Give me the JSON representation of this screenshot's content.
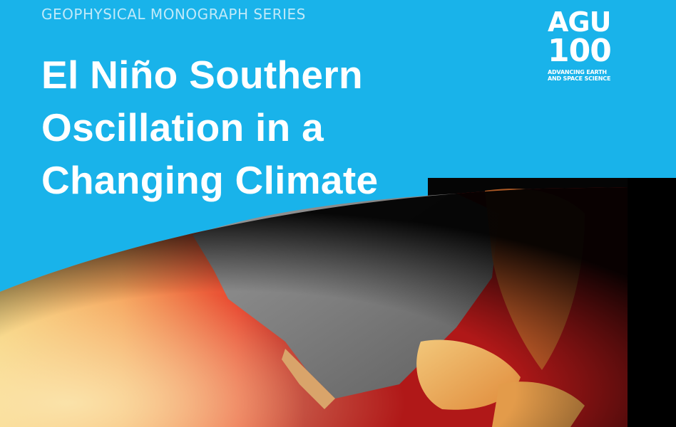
{
  "series_label": "GEOPHYSICAL MONOGRAPH SERIES",
  "title_lines": [
    "El Niño Southern",
    "Oscillation in a",
    "Changing Climate"
  ],
  "publisher_logo": {
    "line1": "AGU",
    "line2": "100",
    "tagline_lines": [
      "ADVANCING EARTH",
      "AND SPACE SCIENCE"
    ]
  },
  "colors": {
    "banner_blue": "#19b3ea",
    "title_text": "#ffffff",
    "series_text": "#bfe9f9"
  },
  "cover_image": "satellite-view-sea-surface-temperature-north-america"
}
